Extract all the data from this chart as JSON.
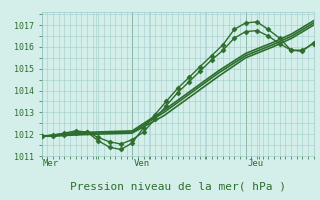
{
  "bg_color": "#d4eeea",
  "grid_color": "#a0cccc",
  "line_color": "#2d6e2d",
  "marker_color": "#2d6e2d",
  "xlabel": "Pression niveau de la mer( hPa )",
  "xlabel_fontsize": 8,
  "day_labels": [
    "Mer",
    "Ven",
    "Jeu"
  ],
  "day_positions": [
    0.0,
    0.333,
    0.75
  ],
  "ylim": [
    1011.0,
    1017.6
  ],
  "yticks": [
    1011,
    1012,
    1013,
    1014,
    1015,
    1016,
    1017
  ],
  "xlim": [
    0.0,
    1.0
  ],
  "lines": [
    {
      "x": [
        0.0,
        0.042,
        0.083,
        0.125,
        0.167,
        0.208,
        0.25,
        0.292,
        0.333,
        0.375,
        0.417,
        0.458,
        0.5,
        0.542,
        0.583,
        0.625,
        0.667,
        0.708,
        0.75,
        0.792,
        0.833,
        0.875,
        0.917,
        0.958,
        1.0
      ],
      "y": [
        1011.9,
        1011.9,
        1011.95,
        1012.05,
        1012.1,
        1011.7,
        1011.4,
        1011.3,
        1011.6,
        1012.3,
        1012.9,
        1013.5,
        1014.1,
        1014.6,
        1015.1,
        1015.6,
        1016.1,
        1016.8,
        1017.1,
        1017.15,
        1016.8,
        1016.4,
        1015.85,
        1015.8,
        1016.2
      ],
      "marker": "D",
      "markersize": 2.5,
      "linewidth": 1.0,
      "zorder": 5
    },
    {
      "x": [
        0.0,
        0.042,
        0.083,
        0.125,
        0.167,
        0.208,
        0.25,
        0.292,
        0.333,
        0.375,
        0.417,
        0.458,
        0.5,
        0.542,
        0.583,
        0.625,
        0.667,
        0.708,
        0.75,
        0.792,
        0.833,
        0.875,
        0.917,
        0.958,
        1.0
      ],
      "y": [
        1011.9,
        1011.95,
        1012.05,
        1012.15,
        1012.1,
        1011.85,
        1011.65,
        1011.55,
        1011.75,
        1012.1,
        1012.7,
        1013.3,
        1013.9,
        1014.4,
        1014.9,
        1015.4,
        1015.85,
        1016.4,
        1016.7,
        1016.75,
        1016.5,
        1016.15,
        1015.85,
        1015.85,
        1016.15
      ],
      "marker": "D",
      "markersize": 2.5,
      "linewidth": 1.0,
      "zorder": 5
    },
    {
      "x": [
        0.0,
        0.1,
        0.2,
        0.333,
        0.45,
        0.55,
        0.65,
        0.75,
        0.85,
        0.92,
        1.0
      ],
      "y": [
        1011.9,
        1012.0,
        1012.05,
        1012.1,
        1013.0,
        1013.9,
        1014.8,
        1015.6,
        1016.1,
        1016.5,
        1017.1
      ],
      "marker": null,
      "linewidth": 1.2,
      "zorder": 3
    },
    {
      "x": [
        0.0,
        0.1,
        0.2,
        0.333,
        0.45,
        0.55,
        0.65,
        0.75,
        0.85,
        0.92,
        1.0
      ],
      "y": [
        1011.9,
        1012.05,
        1012.1,
        1012.15,
        1013.1,
        1014.0,
        1014.9,
        1015.7,
        1016.2,
        1016.6,
        1017.2
      ],
      "marker": null,
      "linewidth": 1.2,
      "zorder": 3
    },
    {
      "x": [
        0.0,
        0.1,
        0.2,
        0.333,
        0.45,
        0.55,
        0.65,
        0.75,
        0.85,
        0.92,
        1.0
      ],
      "y": [
        1011.9,
        1011.95,
        1012.0,
        1012.05,
        1012.85,
        1013.75,
        1014.65,
        1015.5,
        1016.0,
        1016.4,
        1017.0
      ],
      "marker": null,
      "linewidth": 1.2,
      "zorder": 3
    }
  ],
  "extra_markers": {
    "lines_with_right_extension": true
  }
}
